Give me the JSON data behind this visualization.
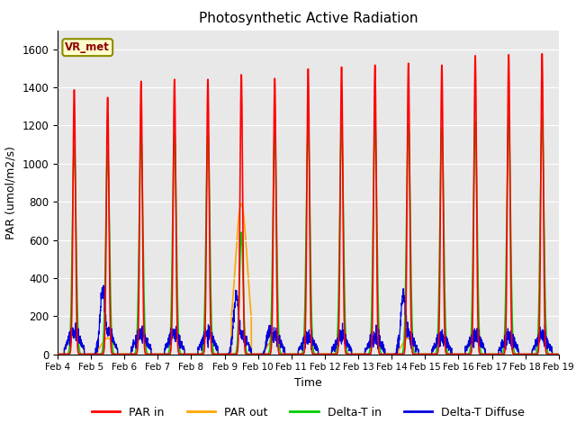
{
  "title": "Photosynthetic Active Radiation",
  "ylabel": "PAR (umol/m2/s)",
  "xlabel": "Time",
  "ylim": [
    0,
    1700
  ],
  "yticks": [
    0,
    200,
    400,
    600,
    800,
    1000,
    1200,
    1400,
    1600
  ],
  "xtick_labels": [
    "Feb 4",
    "Feb 5",
    "Feb 6",
    "Feb 7",
    "Feb 8",
    "Feb 9",
    "Feb 10",
    "Feb 11",
    "Feb 12",
    "Feb 13",
    "Feb 14",
    "Feb 15",
    "Feb 16",
    "Feb 17",
    "Feb 18",
    "Feb 19"
  ],
  "color_par_in": "#ff0000",
  "color_par_out": "#ffa500",
  "color_delta_t_in": "#00cc00",
  "color_delta_t_diffuse": "#0000dd",
  "background_color": "#e8e8e8",
  "legend_label_box": "VR_met",
  "legend_labels": [
    "PAR in",
    "PAR out",
    "Delta-T in",
    "Delta-T Diffuse"
  ],
  "n_days": 15,
  "day_peaks_par_in": [
    1390,
    1350,
    1435,
    1445,
    1445,
    1470,
    1450,
    1500,
    1510,
    1520,
    1530,
    1520,
    1570,
    1575,
    1580
  ],
  "day_peaks_par_out": [
    95,
    85,
    90,
    90,
    95,
    95,
    90,
    85,
    80,
    80,
    85,
    90,
    85,
    80,
    85
  ],
  "day_peaks_delta_t_in": [
    1095,
    1070,
    1150,
    1155,
    1160,
    640,
    1165,
    1200,
    1205,
    1215,
    1210,
    1190,
    1225,
    1245,
    1245
  ],
  "day_peaks_delta_t_diffuse_normal": [
    120,
    115,
    110,
    100,
    105,
    100,
    95,
    90,
    90,
    85,
    85,
    90,
    95,
    90,
    95
  ],
  "day_peaks_delta_t_diffuse_spike": [
    0,
    340,
    0,
    0,
    0,
    310,
    130,
    0,
    0,
    0,
    320,
    0,
    0,
    0,
    0
  ],
  "day_peaks_par_out_override": [
    -1,
    -1,
    -1,
    -1,
    -1,
    790,
    -1,
    -1,
    -1,
    -1,
    -1,
    -1,
    -1,
    -1,
    -1
  ],
  "figsize": [
    6.4,
    4.8
  ],
  "dpi": 100
}
